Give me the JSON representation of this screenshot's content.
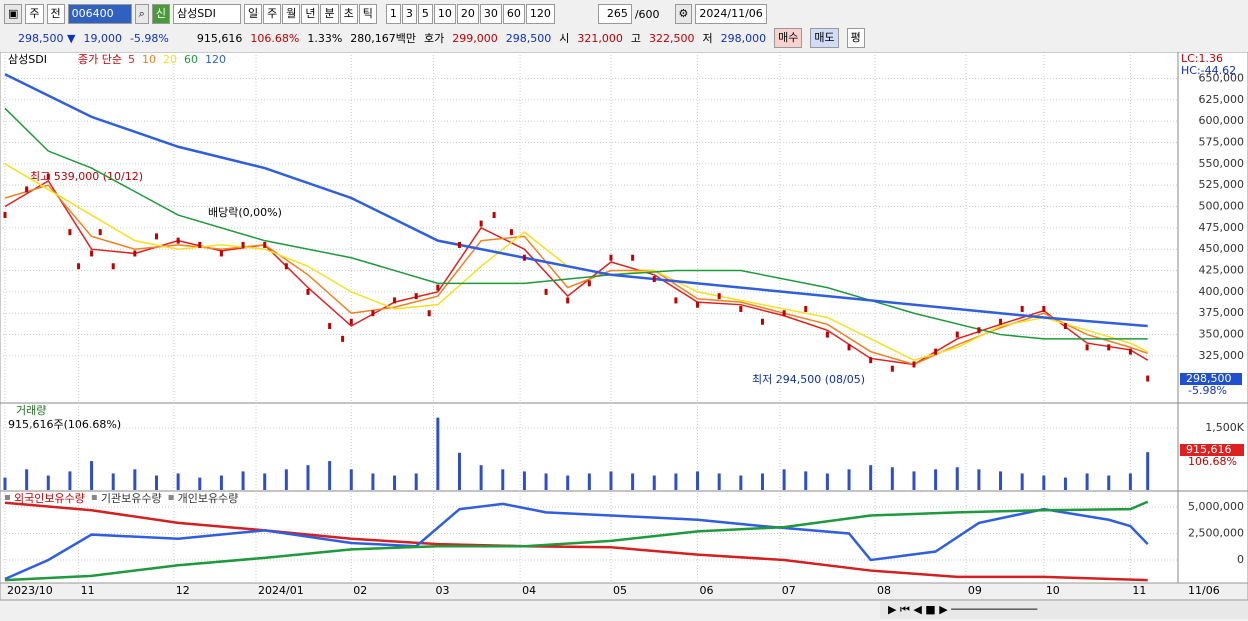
{
  "toolbar": {
    "market": "주",
    "mode": "전",
    "code": "006400",
    "badge": "신",
    "name": "삼성SDI",
    "periods": [
      "일",
      "주",
      "월",
      "년",
      "분",
      "초",
      "틱"
    ],
    "intervals": [
      "1",
      "3",
      "5",
      "10",
      "20",
      "30",
      "60",
      "120"
    ],
    "count": "265",
    "max": "/600",
    "date": "2024/11/06"
  },
  "info_bar": {
    "price": "298,500 ▼",
    "change": "19,000",
    "change_pct": "-5.98%",
    "volume": "915,616",
    "volume_ratio": "106.68%",
    "turnover_rate": "1.33%",
    "amount": "280,167백만",
    "quote_label": "호가",
    "ask": "299,000",
    "bid": "298,500",
    "open_label": "시",
    "open": "321,000",
    "high_label": "고",
    "high": "322,500",
    "low_label": "저",
    "low": "298,000",
    "buy": "매수",
    "sell": "매도",
    "avg": "평"
  },
  "chart_data": [
    {
      "type": "line",
      "title": "삼성SDI",
      "legend_label": "종가 단순",
      "close_color": "#c00000",
      "x": [
        0,
        5,
        10,
        15,
        17,
        20,
        22,
        25,
        30,
        35,
        40,
        45,
        50,
        55,
        60,
        65,
        70,
        75,
        78,
        80,
        85,
        90,
        95,
        98,
        100,
        105,
        110,
        113,
        117,
        120,
        125,
        130,
        135,
        140,
        145,
        150,
        155,
        160,
        165,
        170,
        175,
        180,
        185,
        190,
        195,
        200,
        205,
        210,
        215,
        220,
        225,
        230,
        235,
        240,
        245,
        250,
        255,
        260,
        264
      ],
      "values": [
        490000,
        520000,
        535000,
        470000,
        430000,
        445000,
        470000,
        430000,
        445000,
        465000,
        460000,
        455000,
        445000,
        455000,
        455000,
        430000,
        400000,
        360000,
        345000,
        365000,
        375000,
        390000,
        395000,
        375000,
        405000,
        455000,
        480000,
        490000,
        470000,
        440000,
        400000,
        390000,
        410000,
        440000,
        440000,
        415000,
        390000,
        385000,
        395000,
        380000,
        365000,
        375000,
        380000,
        350000,
        335000,
        320000,
        310000,
        315000,
        330000,
        350000,
        355000,
        365000,
        380000,
        380000,
        360000,
        335000,
        335000,
        330000,
        298500
      ],
      "series": [
        {
          "name": "5",
          "color": "#e02020",
          "x": [
            0,
            10,
            20,
            30,
            40,
            50,
            60,
            70,
            80,
            90,
            100,
            110,
            120,
            130,
            140,
            150,
            160,
            170,
            180,
            190,
            200,
            210,
            220,
            230,
            240,
            250,
            260,
            264
          ],
          "values": [
            500000,
            530000,
            450000,
            445000,
            460000,
            448000,
            455000,
            405000,
            360000,
            388000,
            400000,
            475000,
            450000,
            395000,
            435000,
            420000,
            388000,
            385000,
            372000,
            355000,
            322000,
            315000,
            345000,
            362000,
            378000,
            340000,
            332000,
            320000
          ]
        },
        {
          "name": "10",
          "color": "#f08020",
          "x": [
            0,
            10,
            20,
            30,
            40,
            50,
            60,
            70,
            80,
            90,
            100,
            110,
            120,
            130,
            140,
            150,
            160,
            170,
            180,
            190,
            200,
            210,
            220,
            230,
            240,
            250,
            260,
            264
          ],
          "values": [
            510000,
            525000,
            465000,
            450000,
            455000,
            450000,
            455000,
            420000,
            375000,
            382000,
            395000,
            460000,
            465000,
            405000,
            425000,
            425000,
            392000,
            388000,
            375000,
            362000,
            330000,
            315000,
            338000,
            358000,
            375000,
            350000,
            335000,
            328000
          ]
        },
        {
          "name": "20",
          "color": "#f5e020",
          "x": [
            0,
            10,
            20,
            30,
            40,
            50,
            60,
            70,
            80,
            90,
            100,
            110,
            120,
            130,
            140,
            150,
            160,
            170,
            180,
            190,
            200,
            210,
            220,
            230,
            240,
            250,
            260,
            264
          ],
          "values": [
            550000,
            520000,
            490000,
            460000,
            450000,
            455000,
            450000,
            430000,
            400000,
            380000,
            385000,
            430000,
            470000,
            430000,
            420000,
            425000,
            400000,
            390000,
            380000,
            370000,
            345000,
            320000,
            335000,
            360000,
            370000,
            355000,
            340000,
            330000
          ]
        },
        {
          "name": "60",
          "color": "#1e9a3c",
          "x": [
            0,
            10,
            20,
            40,
            60,
            80,
            100,
            120,
            140,
            155,
            170,
            190,
            210,
            230,
            240,
            264
          ],
          "values": [
            615000,
            565000,
            545000,
            490000,
            460000,
            440000,
            410000,
            410000,
            420000,
            425000,
            425000,
            405000,
            375000,
            350000,
            345000,
            345000
          ]
        },
        {
          "name": "120",
          "color": "#2f5ee0",
          "x": [
            0,
            20,
            40,
            60,
            80,
            100,
            120,
            140,
            160,
            180,
            200,
            220,
            240,
            264
          ],
          "values": [
            655000,
            605000,
            570000,
            545000,
            510000,
            460000,
            440000,
            420000,
            410000,
            400000,
            390000,
            380000,
            370000,
            360000
          ]
        }
      ],
      "ylim": [
        271000,
        681000
      ],
      "yticks": [
        {
          "value": 325000,
          "label": "325,000"
        },
        {
          "value": 350000,
          "label": "350,000"
        },
        {
          "value": 375000,
          "label": "375,000"
        },
        {
          "value": 400000,
          "label": "400,000"
        },
        {
          "value": 425000,
          "label": "425,000"
        },
        {
          "value": 450000,
          "label": "450,000"
        },
        {
          "value": 475000,
          "label": "475,000"
        },
        {
          "value": 500000,
          "label": "500,000"
        },
        {
          "value": 525000,
          "label": "525,000"
        },
        {
          "value": 550000,
          "label": "550,000"
        },
        {
          "value": 575000,
          "label": "575,000"
        },
        {
          "value": 600000,
          "label": "600,000"
        },
        {
          "value": 625000,
          "label": "625,000"
        },
        {
          "value": 650000,
          "label": "650,000"
        }
      ],
      "annotations": [
        "최고 539,000 (10/12)",
        "배당락(0,00%)",
        "최저 294,500 (08/05)"
      ],
      "lc": "LC:1.36",
      "hc": "HC:-44.62",
      "last_label": "298,500",
      "last_change": "-5.98%"
    },
    {
      "type": "bar",
      "title": "거래량",
      "subtitle": "915,616주(106.68%)",
      "color": "#2f4fc8",
      "x": [
        0,
        5,
        10,
        15,
        20,
        25,
        30,
        35,
        40,
        45,
        50,
        55,
        60,
        65,
        70,
        75,
        80,
        85,
        90,
        95,
        100,
        105,
        110,
        115,
        120,
        125,
        130,
        135,
        140,
        145,
        150,
        155,
        160,
        165,
        170,
        175,
        180,
        185,
        190,
        195,
        200,
        205,
        210,
        215,
        220,
        225,
        230,
        235,
        240,
        245,
        250,
        255,
        260,
        264
      ],
      "values": [
        300000,
        500000,
        350000,
        450000,
        700000,
        400000,
        500000,
        350000,
        400000,
        300000,
        350000,
        450000,
        400000,
        500000,
        600000,
        700000,
        500000,
        400000,
        350000,
        400000,
        1750000,
        900000,
        600000,
        500000,
        450000,
        400000,
        350000,
        400000,
        450000,
        400000,
        350000,
        400000,
        450000,
        400000,
        350000,
        400000,
        500000,
        450000,
        400000,
        500000,
        600000,
        550000,
        450000,
        500000,
        550000,
        500000,
        450000,
        400000,
        350000,
        300000,
        400000,
        350000,
        400000,
        915616
      ],
      "ylim": [
        0,
        2080000
      ],
      "yticks": [
        {
          "value": 1500000,
          "label": "1,500K"
        }
      ],
      "last_label": "915,616",
      "last_ratio": "106.68%"
    },
    {
      "type": "line",
      "series": [
        {
          "name": "외국인보유수량",
          "color": "#d42020",
          "x": [
            0,
            20,
            40,
            60,
            80,
            100,
            120,
            140,
            160,
            180,
            200,
            220,
            240,
            264
          ],
          "values": [
            5400000,
            4700000,
            3500000,
            2800000,
            2000000,
            1500000,
            1300000,
            1200000,
            500000,
            0,
            -1000000,
            -1600000,
            -1600000,
            -1900000
          ]
        },
        {
          "name": "기관보유수량",
          "color": "#2f5ee0",
          "x": [
            0,
            10,
            20,
            40,
            60,
            80,
            95,
            105,
            115,
            125,
            140,
            160,
            175,
            195,
            200,
            215,
            225,
            240,
            255,
            260,
            264
          ],
          "values": [
            -1800000,
            0,
            2400000,
            2000000,
            2800000,
            1600000,
            1300000,
            4800000,
            5300000,
            4500000,
            4200000,
            3800000,
            3200000,
            2500000,
            0,
            800000,
            3500000,
            4800000,
            3800000,
            3200000,
            1500000
          ]
        },
        {
          "name": "개인보유수량",
          "color": "#1e9a3c",
          "x": [
            0,
            20,
            40,
            60,
            80,
            100,
            120,
            140,
            160,
            180,
            200,
            220,
            240,
            260,
            264
          ],
          "values": [
            -1900000,
            -1500000,
            -500000,
            200000,
            1000000,
            1300000,
            1300000,
            1800000,
            2700000,
            3100000,
            4200000,
            4500000,
            4700000,
            4800000,
            5500000
          ]
        }
      ],
      "ylim": [
        -2080000,
        6420000
      ],
      "yticks": [
        0,
        {
          "value": 2500000,
          "label": "2,500,000"
        },
        {
          "value": 5000000,
          "label": "5,000,000"
        }
      ],
      "xlim": [
        0,
        271
      ],
      "xticks": [
        {
          "value": 0,
          "label": "2023/10"
        },
        {
          "value": 17,
          "label": "11"
        },
        {
          "value": 39,
          "label": "12"
        },
        {
          "value": 58,
          "label": "2024/01"
        },
        {
          "value": 80,
          "label": "02"
        },
        {
          "value": 99,
          "label": "03"
        },
        {
          "value": 119,
          "label": "04"
        },
        {
          "value": 140,
          "label": "05"
        },
        {
          "value": 160,
          "label": "06"
        },
        {
          "value": 179,
          "label": "07"
        },
        {
          "value": 201,
          "label": "08"
        },
        {
          "value": 222,
          "label": "09"
        },
        {
          "value": 240,
          "label": "10"
        },
        {
          "value": 260,
          "label": "11"
        }
      ],
      "last_date_label": "11/06"
    }
  ]
}
